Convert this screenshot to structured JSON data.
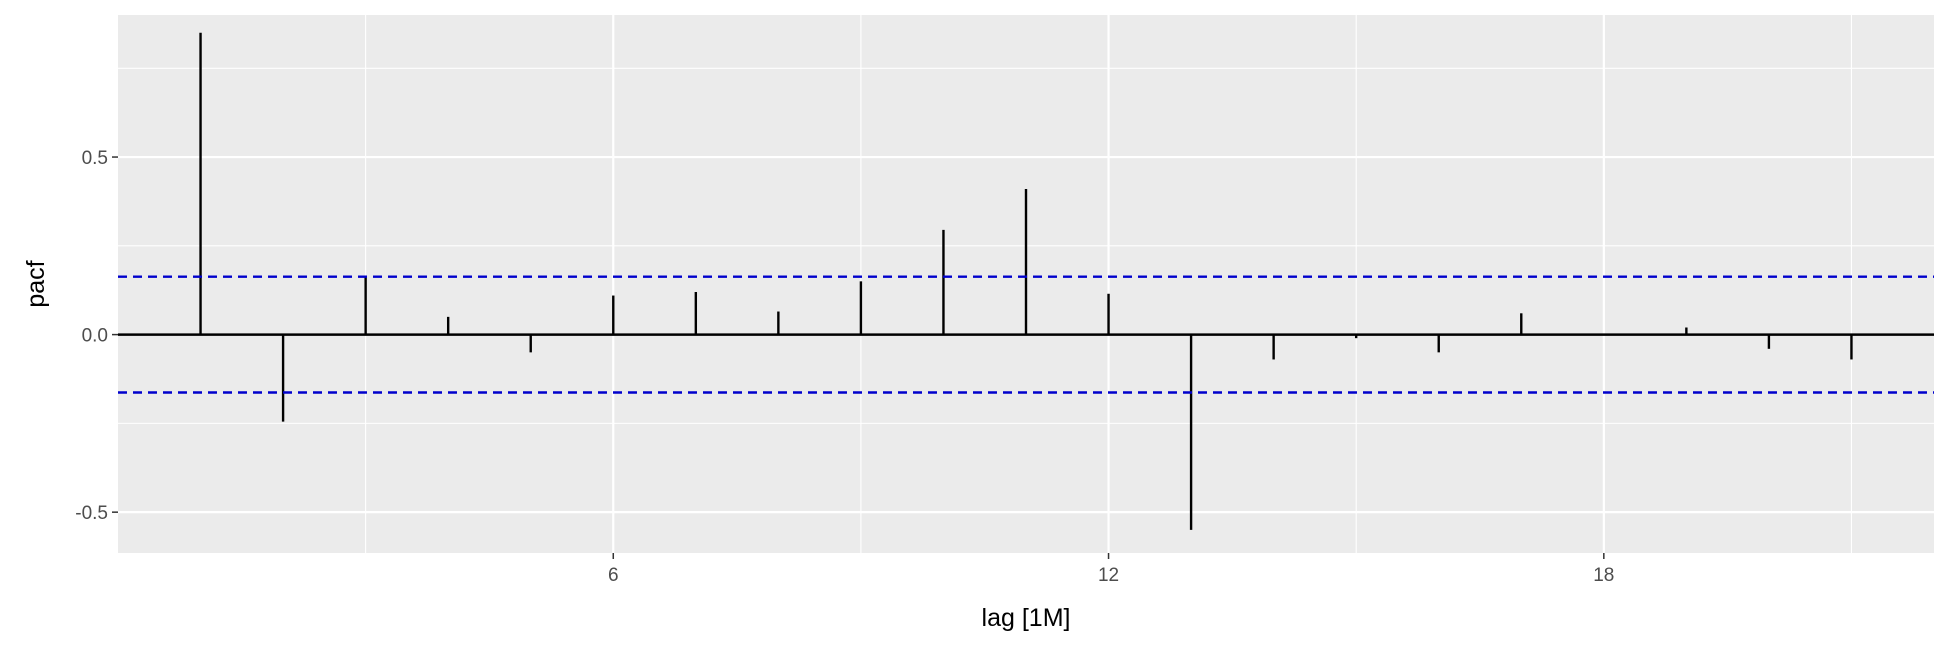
{
  "chart_data": {
    "type": "bar",
    "xlabel": "lag [1M]",
    "ylabel": "pacf",
    "x": [
      1,
      2,
      3,
      4,
      5,
      6,
      7,
      8,
      9,
      10,
      11,
      12,
      13,
      14,
      15,
      16,
      17,
      18,
      19,
      20,
      21
    ],
    "values": [
      0.85,
      -0.245,
      0.165,
      0.05,
      -0.05,
      0.11,
      0.12,
      0.065,
      0.15,
      0.295,
      0.41,
      0.115,
      -0.55,
      -0.07,
      -0.01,
      -0.05,
      0.06,
      0.003,
      0.02,
      -0.04,
      -0.07
    ],
    "confidence_bound": 0.163,
    "xlim": [
      0.0,
      22.0
    ],
    "ylim": [
      -0.615,
      0.9
    ],
    "x_ticks": [
      6,
      12,
      18
    ],
    "x_tick_labels": [
      "6",
      "12",
      "18"
    ],
    "y_ticks": [
      -0.5,
      0.0,
      0.5
    ],
    "y_tick_labels": [
      "-0.5",
      "0.0",
      "0.5"
    ],
    "grid": true,
    "colors": {
      "panel_background": "#ebebeb",
      "grid_line": "#ffffff",
      "spike": "#000000",
      "confidence_line": "#0000cc"
    }
  }
}
